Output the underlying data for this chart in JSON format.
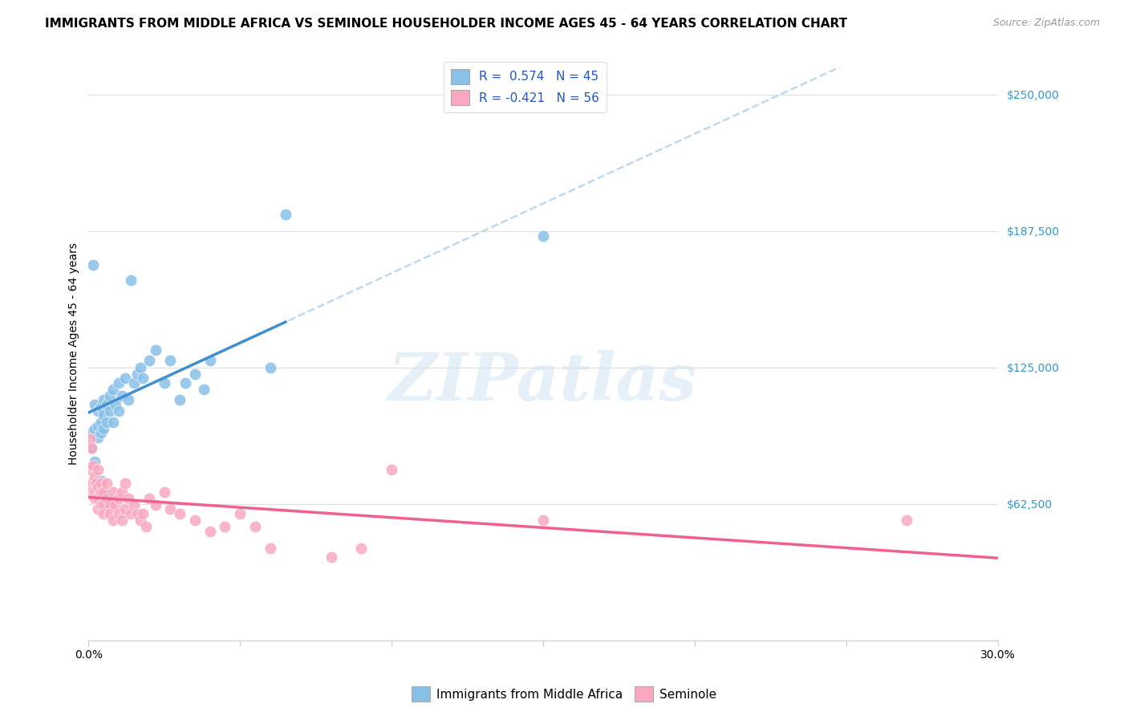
{
  "title": "IMMIGRANTS FROM MIDDLE AFRICA VS SEMINOLE HOUSEHOLDER INCOME AGES 45 - 64 YEARS CORRELATION CHART",
  "source": "Source: ZipAtlas.com",
  "ylabel": "Householder Income Ages 45 - 64 years",
  "xlim": [
    0.0,
    0.3
  ],
  "ylim": [
    0,
    262500
  ],
  "ytick_values": [
    0,
    62500,
    125000,
    187500,
    250000
  ],
  "ytick_labels": [
    "",
    "$62,500",
    "$125,000",
    "$187,500",
    "$250,000"
  ],
  "watermark": "ZIPatlas",
  "blue_R": 0.574,
  "blue_N": 45,
  "pink_R": -0.421,
  "pink_N": 56,
  "blue_color": "#88c0e8",
  "pink_color": "#f9a8c0",
  "blue_line_color": "#4090d0",
  "pink_line_color": "#f06090",
  "dashed_line_color": "#b8d4ec",
  "blue_scatter": [
    [
      0.0008,
      95000
    ],
    [
      0.001,
      88000
    ],
    [
      0.0015,
      172000
    ],
    [
      0.002,
      82000
    ],
    [
      0.002,
      97000
    ],
    [
      0.002,
      108000
    ],
    [
      0.003,
      93000
    ],
    [
      0.003,
      105000
    ],
    [
      0.003,
      98000
    ],
    [
      0.004,
      100000
    ],
    [
      0.004,
      107000
    ],
    [
      0.004,
      95000
    ],
    [
      0.005,
      103000
    ],
    [
      0.005,
      110000
    ],
    [
      0.005,
      97000
    ],
    [
      0.006,
      108000
    ],
    [
      0.006,
      100000
    ],
    [
      0.007,
      112000
    ],
    [
      0.007,
      105000
    ],
    [
      0.008,
      115000
    ],
    [
      0.008,
      100000
    ],
    [
      0.009,
      108000
    ],
    [
      0.01,
      118000
    ],
    [
      0.01,
      105000
    ],
    [
      0.011,
      112000
    ],
    [
      0.012,
      120000
    ],
    [
      0.013,
      110000
    ],
    [
      0.014,
      165000
    ],
    [
      0.015,
      118000
    ],
    [
      0.016,
      122000
    ],
    [
      0.017,
      125000
    ],
    [
      0.018,
      120000
    ],
    [
      0.02,
      128000
    ],
    [
      0.022,
      133000
    ],
    [
      0.025,
      118000
    ],
    [
      0.027,
      128000
    ],
    [
      0.03,
      110000
    ],
    [
      0.032,
      118000
    ],
    [
      0.035,
      122000
    ],
    [
      0.038,
      115000
    ],
    [
      0.04,
      128000
    ],
    [
      0.06,
      125000
    ],
    [
      0.065,
      195000
    ],
    [
      0.15,
      185000
    ],
    [
      0.004,
      73000
    ]
  ],
  "pink_scatter": [
    [
      0.0005,
      92000
    ],
    [
      0.0008,
      78000
    ],
    [
      0.001,
      88000
    ],
    [
      0.001,
      72000
    ],
    [
      0.001,
      68000
    ],
    [
      0.0015,
      80000
    ],
    [
      0.002,
      75000
    ],
    [
      0.002,
      68000
    ],
    [
      0.002,
      65000
    ],
    [
      0.0025,
      72000
    ],
    [
      0.003,
      70000
    ],
    [
      0.003,
      65000
    ],
    [
      0.003,
      60000
    ],
    [
      0.003,
      78000
    ],
    [
      0.004,
      68000
    ],
    [
      0.004,
      62000
    ],
    [
      0.004,
      72000
    ],
    [
      0.005,
      68000
    ],
    [
      0.005,
      62000
    ],
    [
      0.005,
      58000
    ],
    [
      0.006,
      65000
    ],
    [
      0.006,
      72000
    ],
    [
      0.007,
      62000
    ],
    [
      0.007,
      58000
    ],
    [
      0.008,
      68000
    ],
    [
      0.008,
      55000
    ],
    [
      0.009,
      62000
    ],
    [
      0.01,
      65000
    ],
    [
      0.01,
      58000
    ],
    [
      0.011,
      68000
    ],
    [
      0.011,
      55000
    ],
    [
      0.012,
      60000
    ],
    [
      0.012,
      72000
    ],
    [
      0.013,
      65000
    ],
    [
      0.014,
      58000
    ],
    [
      0.015,
      62000
    ],
    [
      0.016,
      58000
    ],
    [
      0.017,
      55000
    ],
    [
      0.018,
      58000
    ],
    [
      0.019,
      52000
    ],
    [
      0.02,
      65000
    ],
    [
      0.022,
      62000
    ],
    [
      0.025,
      68000
    ],
    [
      0.027,
      60000
    ],
    [
      0.03,
      58000
    ],
    [
      0.035,
      55000
    ],
    [
      0.04,
      50000
    ],
    [
      0.045,
      52000
    ],
    [
      0.05,
      58000
    ],
    [
      0.055,
      52000
    ],
    [
      0.06,
      42000
    ],
    [
      0.08,
      38000
    ],
    [
      0.09,
      42000
    ],
    [
      0.1,
      78000
    ],
    [
      0.15,
      55000
    ],
    [
      0.27,
      55000
    ]
  ],
  "title_fontsize": 11,
  "label_fontsize": 10,
  "tick_fontsize": 10,
  "legend_fontsize": 11
}
